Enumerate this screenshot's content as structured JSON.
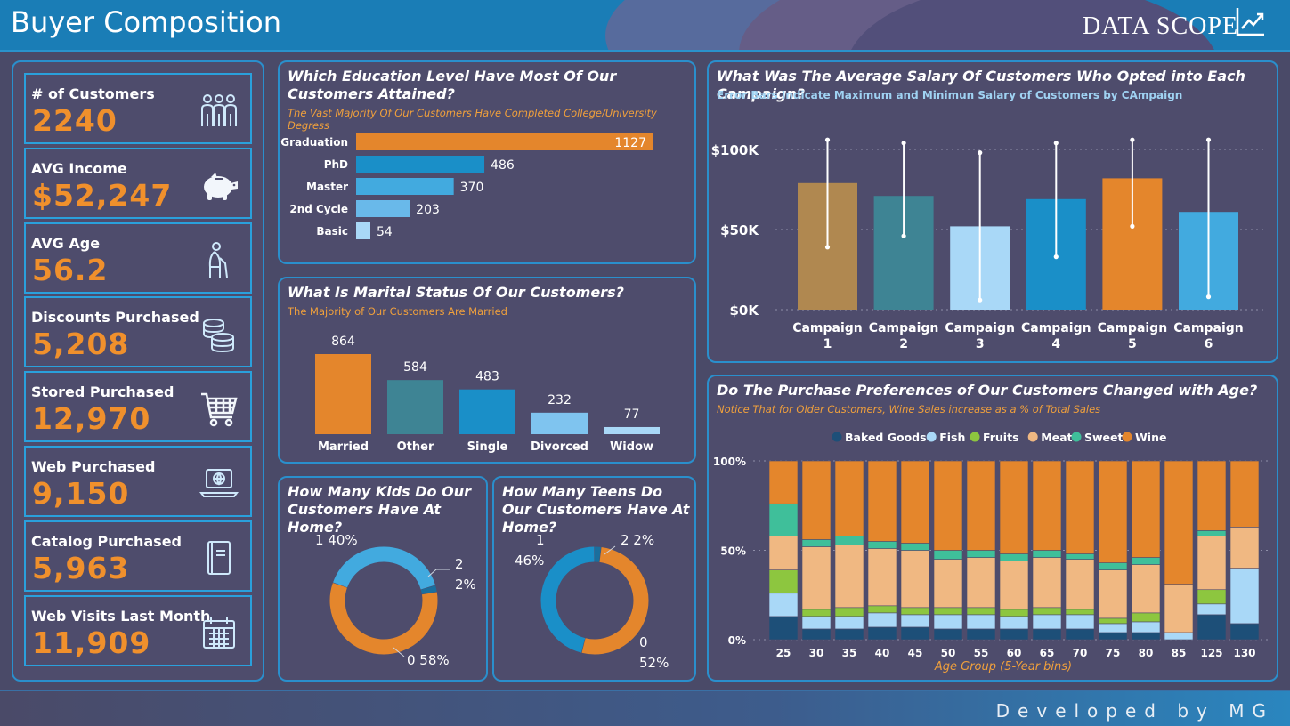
{
  "header": {
    "title": "Buyer Composition",
    "logo_text": "DATA SCOPE"
  },
  "footer": {
    "text": "Developed by MG"
  },
  "kpis": [
    {
      "label": "# of Customers",
      "value": "2240",
      "icon": "people-icon"
    },
    {
      "label": "AVG Income",
      "value": "$52,247",
      "icon": "piggy-bank-icon"
    },
    {
      "label": "AVG Age",
      "value": "56.2",
      "icon": "elderly-person-icon"
    },
    {
      "label": "Discounts Purchased",
      "value": "5,208",
      "icon": "coins-icon"
    },
    {
      "label": "Stored Purchased",
      "value": "12,970",
      "icon": "shopping-cart-icon"
    },
    {
      "label": "Web Purchased",
      "value": "9,150",
      "icon": "laptop-icon"
    },
    {
      "label": "Catalog Purchased",
      "value": "5,963",
      "icon": "catalog-book-icon"
    },
    {
      "label": "Web Visits Last Month",
      "value": "11,909",
      "icon": "calendar-icon"
    }
  ],
  "colors": {
    "orange": "#e4862c",
    "blue1": "#1a8fc8",
    "blue2": "#42aadf",
    "blue3": "#7fc4ef",
    "light": "#a9d8f7",
    "panel_border": "#2a8fcc"
  },
  "education": {
    "title": "Which Education Level Have Most Of Our Customers Attained?",
    "subtitle": "The Vast Majority Of Our Customers Have Completed College/University Degress"
  },
  "marital": {
    "title": "What Is Marital Status Of Our Customers?",
    "subtitle": "The Majority of Our Customers Are Married"
  },
  "kids": {
    "title": "How Many Kids Do Our Customers Have At Home?"
  },
  "teens": {
    "title": "How Many Teens Do Our Customers Have At Home?"
  },
  "campaign": {
    "title": "What Was The Average Salary Of Customers Who Opted into Each Campaign?",
    "subtitle": "Error Bars Indicate Maximum and Minimun Salary of Customers by CAmpaign"
  },
  "age": {
    "title": "Do The Purchase Preferences of Our Customers Changed with Age?",
    "subtitle": "Notice That for Older Customers, Wine Sales increase as a % of Total Sales"
  },
  "chart_data": [
    {
      "id": "education",
      "type": "bar",
      "orientation": "horizontal",
      "categories": [
        "Graduation",
        "PhD",
        "Master",
        "2nd Cycle",
        "Basic"
      ],
      "values": [
        1127,
        486,
        370,
        203,
        54
      ],
      "colors": [
        "#e4862c",
        "#1a8fc8",
        "#42aadf",
        "#69b9ea",
        "#a9d8f7"
      ]
    },
    {
      "id": "marital",
      "type": "bar",
      "categories": [
        "Married",
        "Other",
        "Single",
        "Divorced",
        "Widow"
      ],
      "values": [
        864,
        584,
        483,
        232,
        77
      ],
      "colors": [
        "#e4862c",
        "#3e8494",
        "#1a8fc8",
        "#7fc4ef",
        "#a9d8f7"
      ]
    },
    {
      "id": "kids",
      "type": "pie",
      "style": "donut",
      "slices": [
        {
          "label": "0",
          "percent": 58,
          "text": "0 58%",
          "color": "#e4862c"
        },
        {
          "label": "1",
          "percent": 40,
          "text": "1 40%",
          "color": "#42aadf"
        },
        {
          "label": "2",
          "percent": 2,
          "text_line1": "2",
          "text_line2": "2%",
          "color": "#1a6f9e"
        }
      ]
    },
    {
      "id": "teens",
      "type": "pie",
      "style": "donut",
      "slices": [
        {
          "label": "0",
          "percent": 52,
          "text_line1": "0",
          "text_line2": "52%",
          "color": "#e4862c"
        },
        {
          "label": "1",
          "percent": 46,
          "text_line1": "1",
          "text_line2": "46%",
          "color": "#1a8fc8"
        },
        {
          "label": "2",
          "percent": 2,
          "text": "2 2%",
          "color": "#1a6f9e"
        }
      ]
    },
    {
      "id": "campaign",
      "type": "bar",
      "categories": [
        "Campaign 1",
        "Campaign 2",
        "Campaign 3",
        "Campaign 4",
        "Campaign 5",
        "Campaign 6"
      ],
      "category_lines": [
        [
          "Campaign",
          "1"
        ],
        [
          "Campaign",
          "2"
        ],
        [
          "Campaign",
          "3"
        ],
        [
          "Campaign",
          "4"
        ],
        [
          "Campaign",
          "5"
        ],
        [
          "Campaign",
          "6"
        ]
      ],
      "values": [
        79000,
        71000,
        52000,
        69000,
        82000,
        61000
      ],
      "error_max": [
        106000,
        104000,
        98000,
        104000,
        106000,
        106000
      ],
      "error_min": [
        39000,
        46000,
        6000,
        33000,
        52000,
        8000
      ],
      "colors": [
        "#b08850",
        "#3e8494",
        "#a9d8f7",
        "#1a8fc8",
        "#e4862c",
        "#42aadf"
      ],
      "ylim": [
        0,
        105000
      ],
      "yticks": [
        0,
        50000,
        100000
      ],
      "ytick_labels": [
        "$0K",
        "$50K",
        "$100K"
      ],
      "grid": true
    },
    {
      "id": "age",
      "type": "bar",
      "stacked": "percent",
      "categories": [
        "25",
        "30",
        "35",
        "40",
        "45",
        "50",
        "55",
        "60",
        "65",
        "70",
        "75",
        "80",
        "85",
        "125",
        "130"
      ],
      "xlabel": "Age Group (5-Year bins)",
      "yticks": [
        0,
        50,
        100
      ],
      "ytick_labels": [
        "0%",
        "50%",
        "100%"
      ],
      "legend_position": "top",
      "series": [
        {
          "name": "Baked Goods",
          "color": "#1d4f78",
          "values": [
            13,
            6,
            6,
            7,
            7,
            6,
            6,
            6,
            6,
            6,
            4,
            4,
            0,
            14,
            9
          ]
        },
        {
          "name": "Fish",
          "color": "#a9d8f7",
          "values": [
            13,
            7,
            7,
            8,
            7,
            8,
            8,
            7,
            8,
            8,
            5,
            6,
            4,
            6,
            31
          ]
        },
        {
          "name": "Fruits",
          "color": "#8dc63f",
          "values": [
            13,
            4,
            5,
            4,
            4,
            4,
            4,
            4,
            4,
            3,
            3,
            5,
            0,
            8,
            0
          ]
        },
        {
          "name": "Meat",
          "color": "#f0b882",
          "values": [
            19,
            35,
            35,
            32,
            32,
            27,
            28,
            27,
            28,
            28,
            27,
            27,
            27,
            30,
            23
          ]
        },
        {
          "name": "Sweet",
          "color": "#3fbf9a",
          "values": [
            18,
            4,
            5,
            4,
            4,
            5,
            4,
            4,
            4,
            3,
            4,
            4,
            0,
            3,
            0
          ]
        },
        {
          "name": "Wine",
          "color": "#e4862c",
          "values": [
            24,
            44,
            42,
            45,
            46,
            50,
            50,
            52,
            50,
            52,
            57,
            54,
            69,
            39,
            37
          ]
        }
      ]
    }
  ]
}
